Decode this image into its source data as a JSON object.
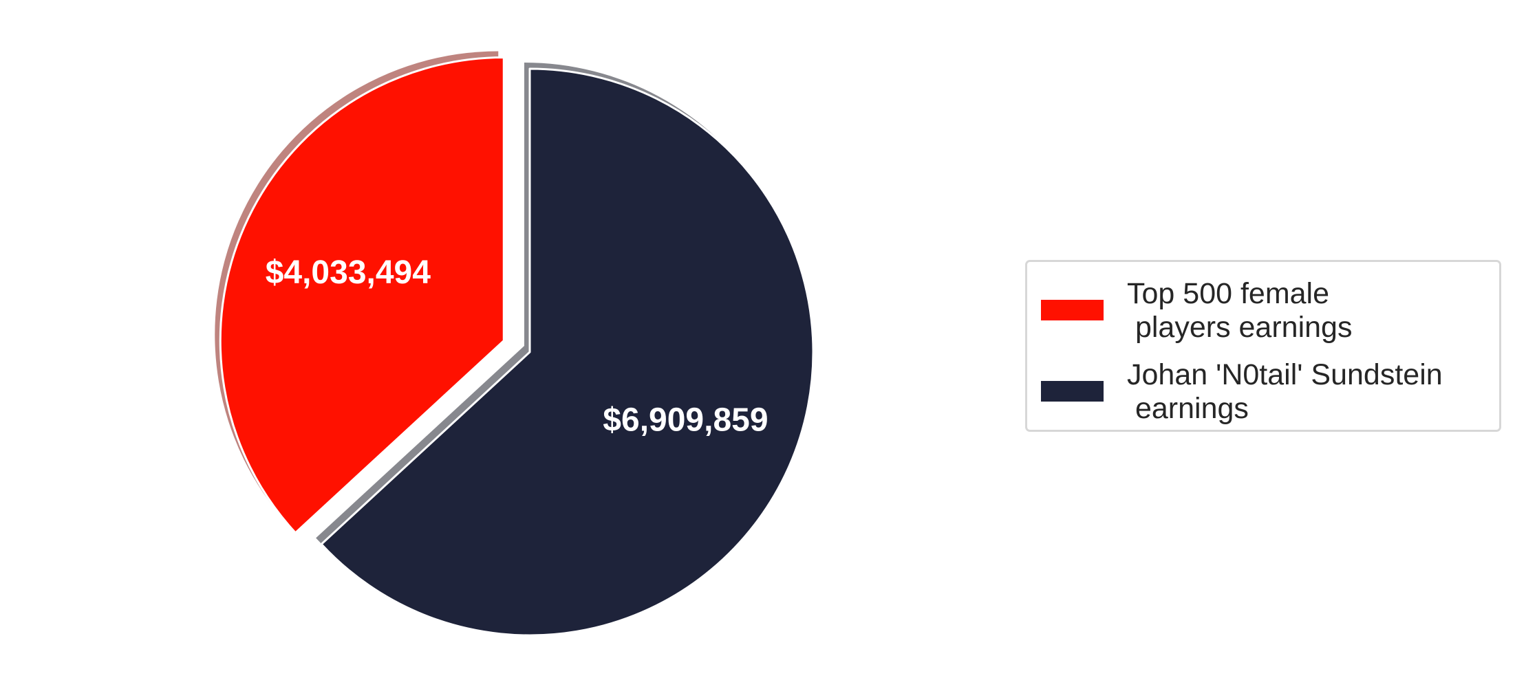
{
  "chart_data": {
    "type": "pie",
    "slices": [
      {
        "label": "Top 500 female\n players earnings",
        "value": 4033494,
        "display": "$4,033,494",
        "color": "#ff1100",
        "exploded": true
      },
      {
        "label": "Johan 'N0tail' Sundstein\n earnings",
        "value": 6909859,
        "display": "$6,909,859",
        "color": "#1e233a",
        "exploded": false
      }
    ],
    "start_angle_deg": 90,
    "direction": "counterclockwise",
    "shadow": true,
    "legend_position": "right"
  }
}
